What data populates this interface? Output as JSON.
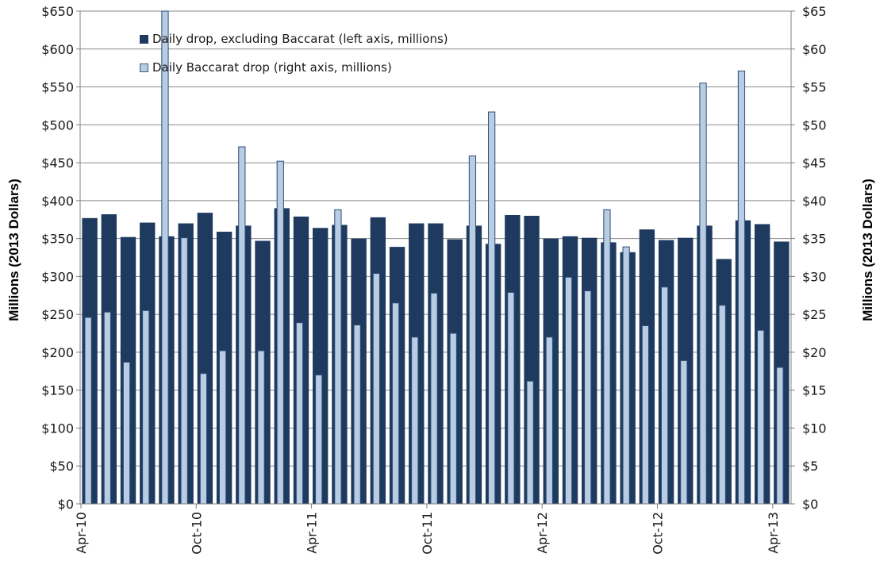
{
  "chart_data": {
    "type": "bar",
    "title": "",
    "ylabel_left": "Millions (2013 Dollars)",
    "ylabel_right": "Millions (2013 Dollars)",
    "ylim_left": [
      0,
      650
    ],
    "ylim_right": [
      0,
      65
    ],
    "yticks_left": [
      "$0",
      "$50",
      "$100",
      "$150",
      "$200",
      "$250",
      "$300",
      "$350",
      "$400",
      "$450",
      "$500",
      "$550",
      "$600",
      "$650"
    ],
    "yticks_right": [
      "$0",
      "$5",
      "$10",
      "$15",
      "$20",
      "$25",
      "$30",
      "$35",
      "$40",
      "$45",
      "$50",
      "$55",
      "$60",
      "$65"
    ],
    "x_tick_labels": [
      "Apr-10",
      "Oct-10",
      "Apr-11",
      "Oct-11",
      "Apr-12",
      "Oct-12",
      "Apr-13"
    ],
    "x": [
      "Apr-10",
      "May-10",
      "Jun-10",
      "Jul-10",
      "Aug-10",
      "Sep-10",
      "Oct-10",
      "Nov-10",
      "Dec-10",
      "Jan-11",
      "Feb-11",
      "Mar-11",
      "Apr-11",
      "May-11",
      "Jun-11",
      "Jul-11",
      "Aug-11",
      "Sep-11",
      "Oct-11",
      "Nov-11",
      "Dec-11",
      "Jan-12",
      "Feb-12",
      "Mar-12",
      "Apr-12",
      "May-12",
      "Jun-12",
      "Jul-12",
      "Aug-12",
      "Sep-12",
      "Oct-12",
      "Nov-12",
      "Dec-12",
      "Jan-13",
      "Feb-13",
      "Mar-13",
      "Apr-13"
    ],
    "series": [
      {
        "name": "Daily drop, excluding Baccarat (left axis, millions)",
        "axis": "left",
        "color": "#1f3a5f",
        "values": [
          377,
          382,
          352,
          371,
          353,
          370,
          384,
          359,
          367,
          347,
          390,
          379,
          364,
          368,
          350,
          378,
          339,
          370,
          370,
          349,
          367,
          343,
          381,
          380,
          350,
          353,
          351,
          345,
          332,
          362,
          348,
          351,
          367,
          323,
          374,
          369,
          346
        ]
      },
      {
        "name": "Daily Baccarat drop (right axis, millions)",
        "axis": "right",
        "color": "#b8cce4",
        "values": [
          24.6,
          25.3,
          18.7,
          25.5,
          65,
          35.1,
          17.2,
          20.2,
          47.1,
          20.2,
          45.2,
          23.9,
          17,
          38.8,
          23.6,
          30.4,
          26.5,
          22,
          27.8,
          22.5,
          45.9,
          51.7,
          27.9,
          16.2,
          22,
          29.9,
          28.1,
          38.8,
          33.9,
          23.5,
          28.6,
          18.9,
          55.5,
          26.2,
          57.1,
          22.9,
          18
        ]
      }
    ],
    "legend_position": "top-left",
    "grid": "horizontal"
  }
}
